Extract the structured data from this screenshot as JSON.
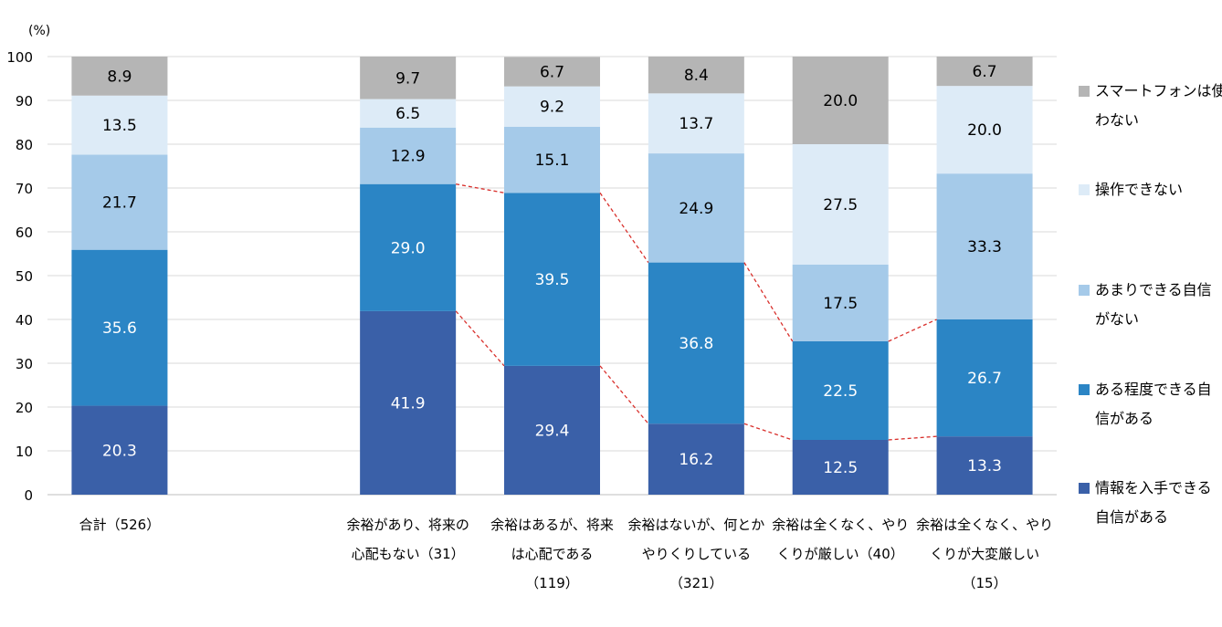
{
  "chart_data": {
    "type": "bar",
    "stacked": true,
    "unit_label": "(%)",
    "ylim": [
      0,
      100
    ],
    "yticks": [
      0,
      10,
      20,
      30,
      40,
      50,
      60,
      70,
      80,
      90,
      100
    ],
    "grid": true,
    "legend_position": "right",
    "categories": [
      [
        "合計（526）"
      ],
      [],
      [
        "余裕があり、将来の",
        "心配もない（31）"
      ],
      [
        "余裕はあるが、将来",
        "は心配である",
        "（119）"
      ],
      [
        "余裕はないが、何とか",
        "やりくりしている",
        "（321）"
      ],
      [
        "余裕は全くなく、やり",
        "くりが厳しい（40）"
      ],
      [
        "余裕は全くなく、やり",
        "くりが大変厳しい",
        "（15）"
      ]
    ],
    "series": [
      {
        "name": [
          "情報を入手できる",
          "自信がある"
        ],
        "color": "#3a60a8",
        "label_color": "#ffffff",
        "values": [
          20.3,
          null,
          41.9,
          29.4,
          16.2,
          12.5,
          13.3
        ]
      },
      {
        "name": [
          "ある程度できる自",
          "信がある"
        ],
        "color": "#2b85c5",
        "label_color": "#ffffff",
        "values": [
          35.6,
          null,
          29.0,
          39.5,
          36.8,
          22.5,
          26.7
        ]
      },
      {
        "name": [
          "あまりできる自信",
          "がない"
        ],
        "color": "#a5cae9",
        "label_color": "#000000",
        "values": [
          21.7,
          null,
          12.9,
          15.1,
          24.9,
          17.5,
          33.3
        ]
      },
      {
        "name": [
          "操作できない"
        ],
        "color": "#ddebf7",
        "label_color": "#000000",
        "values": [
          13.5,
          null,
          6.5,
          9.2,
          13.7,
          27.5,
          20.0
        ]
      },
      {
        "name": [
          "スマートフォンは使",
          "わない"
        ],
        "color": "#b5b5b5",
        "label_color": "#000000",
        "values": [
          8.9,
          null,
          9.7,
          6.7,
          8.4,
          20.0,
          6.7
        ]
      }
    ],
    "connector_lines": {
      "color": "#d9302c",
      "style": "dashed",
      "series_tops": [
        0,
        1
      ],
      "from_category": 2
    }
  }
}
